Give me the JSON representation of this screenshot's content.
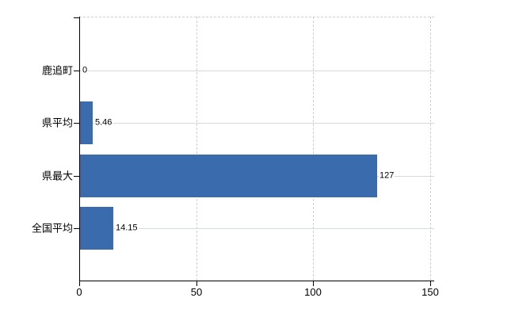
{
  "chart_data": {
    "type": "bar",
    "orientation": "horizontal",
    "title": "",
    "categories": [
      "鹿追町",
      "県平均",
      "県最大",
      "全国平均"
    ],
    "values": [
      0,
      5.46,
      127,
      14.15
    ],
    "value_labels": [
      "0",
      "5.46",
      "127",
      "14.15"
    ],
    "x_ticks": [
      0,
      50,
      100,
      150
    ],
    "x_tick_labels": [
      "0",
      "50",
      "100",
      "150"
    ],
    "xlim": [
      0,
      150
    ],
    "legend": "none",
    "grid": true,
    "colors": {
      "bar": "#3a6bac",
      "axis": "#000000",
      "h_gridline": "#d5dcd5",
      "v_gridline": "#cfcfcf",
      "background": "#ffffff",
      "text": "#000000"
    }
  }
}
